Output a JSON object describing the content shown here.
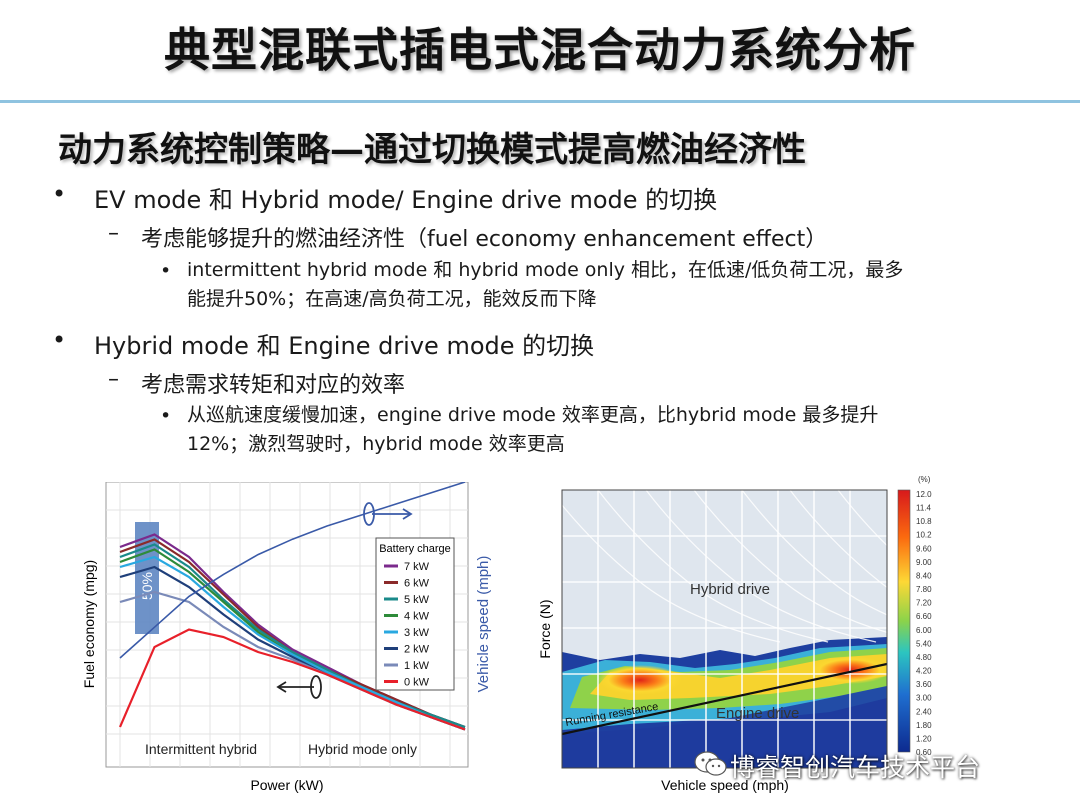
{
  "slide": {
    "title": "典型混联式插电式混合动力系统分析",
    "subtitle": "动力系统控制策略—通过切换模式提高燃油经济性"
  },
  "bullets": [
    {
      "mark": "•",
      "text": "EV mode 和 Hybrid mode/ Engine drive mode 的切换"
    },
    {
      "mark": "–",
      "text": "考虑能够提升的燃油经济性（fuel economy enhancement effect）"
    },
    {
      "mark": "•",
      "line1": "intermittent hybrid mode 和 hybrid mode only 相比，在低速/低负荷工况，最多",
      "line2": "能提升50%；在高速/高负荷工况，能效反而下降"
    },
    {
      "mark": "•",
      "text": "Hybrid  mode 和 Engine drive mode 的切换"
    },
    {
      "mark": "–",
      "text": "考虑需求转矩和对应的效率"
    },
    {
      "mark": "•",
      "line1": "从巡航速度缓慢加速，engine drive mode 效率更高，比hybrid mode 最多提升",
      "line2": "12%；激烈驾驶时，hybrid mode 效率更高"
    }
  ],
  "chart_data": [
    {
      "type": "line",
      "xlabel": "Power (kW)",
      "ylabel": "Fuel economy (mpg)",
      "y2label": "Vehicle speed (mph)",
      "legend_title": "Battery charge",
      "legend_position": "top-right",
      "region_labels": [
        "Intermittent hybrid",
        "Hybrid mode only"
      ],
      "annotation": "50%",
      "grid": true,
      "x": [
        0,
        1,
        2,
        3,
        4,
        5,
        6,
        7,
        8,
        9,
        10
      ],
      "series": [
        {
          "name": "7 kW",
          "color": "#7b2a8c",
          "values": [
            0.78,
            0.83,
            0.74,
            0.6,
            0.47,
            0.37,
            0.3,
            0.23,
            0.17,
            0.11,
            0.06
          ]
        },
        {
          "name": "6 kW",
          "color": "#8b2a2a",
          "values": [
            0.76,
            0.81,
            0.72,
            0.59,
            0.46,
            0.36,
            0.29,
            0.23,
            0.17,
            0.11,
            0.06
          ]
        },
        {
          "name": "5 kW",
          "color": "#1a8a8a",
          "values": [
            0.74,
            0.79,
            0.7,
            0.57,
            0.45,
            0.36,
            0.29,
            0.22,
            0.16,
            0.11,
            0.06
          ]
        },
        {
          "name": "4 kW",
          "color": "#2e8b3a",
          "values": [
            0.72,
            0.77,
            0.68,
            0.56,
            0.44,
            0.35,
            0.28,
            0.22,
            0.16,
            0.1,
            0.05
          ]
        },
        {
          "name": "3 kW",
          "color": "#29a8e0",
          "values": [
            0.7,
            0.74,
            0.66,
            0.54,
            0.43,
            0.35,
            0.28,
            0.22,
            0.16,
            0.1,
            0.05
          ]
        },
        {
          "name": "2 kW",
          "color": "#1f3f7a",
          "values": [
            0.66,
            0.7,
            0.62,
            0.51,
            0.41,
            0.34,
            0.27,
            0.21,
            0.15,
            0.1,
            0.05
          ]
        },
        {
          "name": "1 kW",
          "color": "#7a8ab8",
          "values": [
            0.56,
            0.6,
            0.56,
            0.46,
            0.38,
            0.33,
            0.27,
            0.21,
            0.15,
            0.1,
            0.05
          ]
        },
        {
          "name": "0 kW",
          "color": "#e8202a",
          "values": [
            0.06,
            0.38,
            0.45,
            0.42,
            0.36,
            0.32,
            0.27,
            0.21,
            0.15,
            0.1,
            0.05
          ]
        }
      ],
      "speed_curve": [
        0.2,
        0.34,
        0.48,
        0.58,
        0.67,
        0.74,
        0.8,
        0.85,
        0.9,
        0.95,
        1.0
      ]
    },
    {
      "type": "heatmap",
      "xlabel": "Vehicle speed (mph)",
      "ylabel": "Force (N)",
      "region_labels": [
        "Hybrid drive",
        "Engine drive",
        "Running resistance"
      ],
      "colorbar_unit": "(%)",
      "colorbar_ticks": [
        "12.0",
        "11.4",
        "10.8",
        "10.2",
        "9.60",
        "9.00",
        "8.40",
        "7.80",
        "7.20",
        "6.60",
        "6.00",
        "5.40",
        "4.80",
        "4.20",
        "3.60",
        "3.00",
        "2.40",
        "1.80",
        "1.20",
        "0.60"
      ]
    }
  ],
  "watermark": {
    "text": "博睿智创汽车技术平台",
    "icon": "wechat-icon"
  }
}
